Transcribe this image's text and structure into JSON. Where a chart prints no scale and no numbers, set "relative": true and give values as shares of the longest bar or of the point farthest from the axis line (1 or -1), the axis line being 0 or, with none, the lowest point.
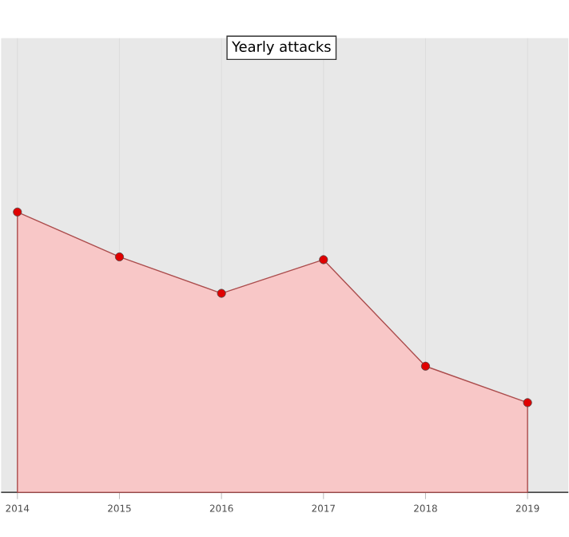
{
  "chart_data": {
    "type": "area",
    "title": "Yearly attacks",
    "categories": [
      "2014",
      "2015",
      "2016",
      "2017",
      "2018",
      "2019"
    ],
    "values": [
      1.0,
      0.84,
      0.71,
      0.83,
      0.45,
      0.32
    ],
    "color": "#e00000",
    "relative": true,
    "marker": "circle",
    "grid": true
  }
}
